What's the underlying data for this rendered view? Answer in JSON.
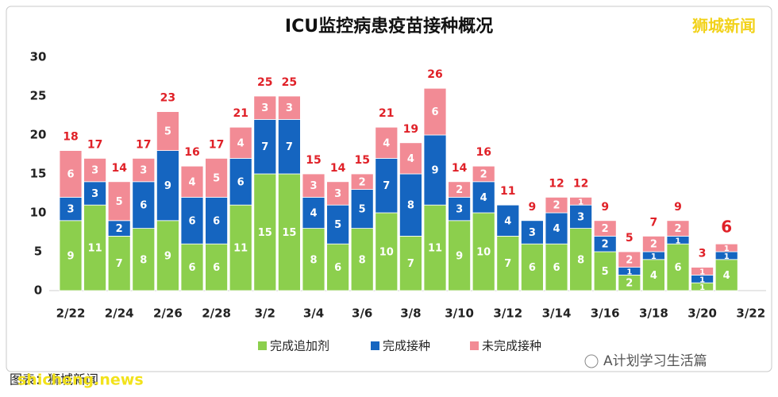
{
  "chart_data": {
    "type": "stacked_bar",
    "title": "ICU监控病患疫苗接种概况",
    "watermark": "狮城新闻",
    "footer_left": "图表：狮城新闻",
    "footer_overlay": "shicheng.news",
    "footer_right": "A计划学习生活篇",
    "categories": [
      "2/22",
      null,
      "2/24",
      null,
      "2/26",
      null,
      "2/28",
      null,
      "3/2",
      null,
      "3/4",
      null,
      "3/6",
      null,
      "3/8",
      null,
      "3/10",
      null,
      "3/12",
      null,
      "3/14",
      null,
      "3/16",
      null,
      "3/18",
      null,
      "3/20",
      null
    ],
    "extra_xtick": "3/22",
    "series": [
      {
        "name": "完成追加剂",
        "color": "#8ccf4d",
        "values": [
          9,
          11,
          7,
          8,
          9,
          6,
          6,
          11,
          15,
          15,
          8,
          6,
          8,
          10,
          7,
          11,
          9,
          10,
          7,
          6,
          6,
          8,
          5,
          2,
          4,
          6,
          1,
          4
        ]
      },
      {
        "name": "完成接种",
        "color": "#1565c0",
        "values": [
          3,
          3,
          2,
          6,
          9,
          6,
          6,
          6,
          7,
          7,
          4,
          5,
          5,
          7,
          8,
          9,
          3,
          4,
          4,
          3,
          4,
          3,
          2,
          1,
          1,
          1,
          1,
          1
        ]
      },
      {
        "name": "未完成接种",
        "color": "#f28b95",
        "values": [
          6,
          3,
          5,
          3,
          5,
          4,
          5,
          4,
          3,
          3,
          3,
          3,
          2,
          4,
          4,
          6,
          2,
          2,
          0,
          0,
          2,
          1,
          2,
          2,
          2,
          2,
          1,
          1
        ]
      }
    ],
    "totals": [
      18,
      17,
      14,
      17,
      23,
      16,
      17,
      21,
      25,
      25,
      15,
      14,
      15,
      21,
      19,
      26,
      14,
      16,
      11,
      9,
      12,
      12,
      9,
      5,
      7,
      9,
      3,
      6
    ],
    "total_color": "#e02128",
    "ylim": [
      0,
      30
    ],
    "yticks": [
      0,
      5,
      10,
      15,
      20,
      25,
      30
    ],
    "grid": false,
    "legend": "bottom"
  }
}
